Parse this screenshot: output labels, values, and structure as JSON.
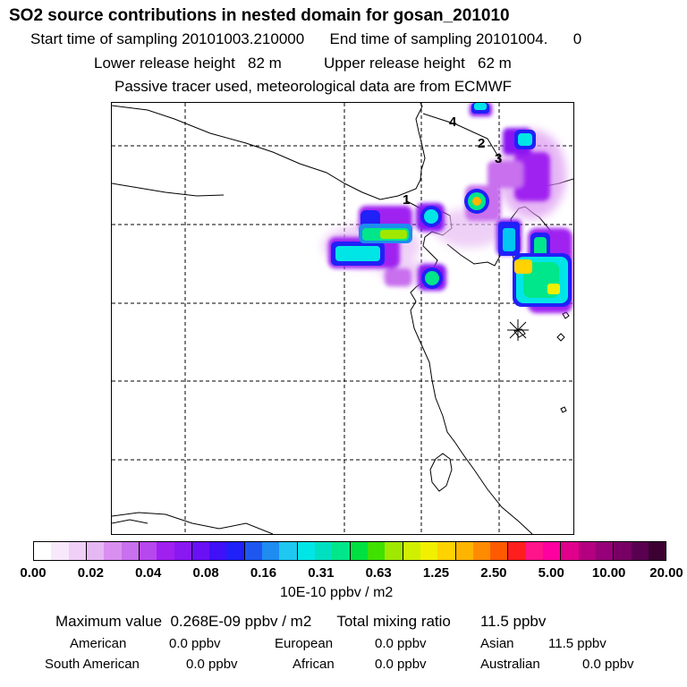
{
  "header": {
    "title": "SO2 source contributions in nested domain for gosan_201010",
    "line1": "Start time of sampling 20101003.210000      End time of sampling 20101004.      0",
    "line2": "Lower release height   82 m          Upper release height   62 m",
    "line3": "Passive tracer used, meteorological data are from ECMWF"
  },
  "map": {
    "source_labels": [
      "1",
      "2",
      "3",
      "4"
    ],
    "receptor_icon": "asterisk-receptor-icon"
  },
  "colorbar": {
    "tick_labels": [
      "0.00",
      "0.02",
      "0.04",
      "0.08",
      "0.16",
      "0.31",
      "0.63",
      "1.25",
      "2.50",
      "5.00",
      "10.00",
      "20.00"
    ],
    "colors": [
      "#ffffff",
      "#f8e8fb",
      "#f0d0f7",
      "#e6b8f3",
      "#d98ff0",
      "#c870ee",
      "#b748ee",
      "#a020f0",
      "#8a18f2",
      "#6a10f5",
      "#4010f8",
      "#2020f8",
      "#1e56f0",
      "#1e8cf0",
      "#1ec8f0",
      "#00e6e6",
      "#00e0c0",
      "#00e68a",
      "#00e040",
      "#40e000",
      "#a0e800",
      "#d0f000",
      "#f0f000",
      "#ffd200",
      "#ffb400",
      "#ff8c00",
      "#ff5a00",
      "#ff1e1e",
      "#ff148c",
      "#ff00a0",
      "#e0008c",
      "#b40080",
      "#960078",
      "#780064",
      "#5a0050",
      "#3c0032"
    ],
    "unit": "10E-10 ppbv / m2"
  },
  "footer": {
    "max_line": "Maximum value  0.268E-09 ppbv / m2      Total mixing ratio       11.5 ppbv",
    "rows": [
      [
        {
          "name": "American",
          "value": "0.0 ppbv"
        },
        {
          "name": "European",
          "value": "0.0 ppbv"
        },
        {
          "name": "Asian",
          "value": "11.5 ppbv"
        }
      ],
      [
        {
          "name": "South American",
          "value": "0.0 ppbv"
        },
        {
          "name": "African",
          "value": "0.0 ppbv"
        },
        {
          "name": "Australian",
          "value": "0.0 ppbv"
        }
      ]
    ]
  }
}
